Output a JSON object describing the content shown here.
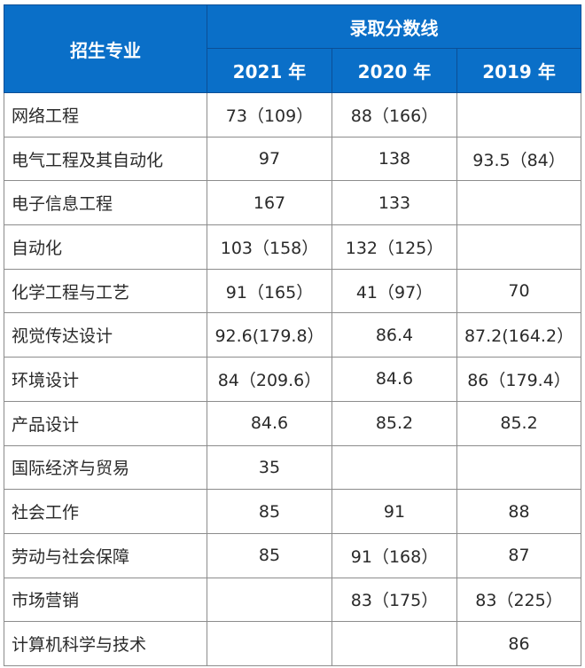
{
  "table": {
    "header": {
      "major_label": "招生专业",
      "group_label": "录取分数线",
      "years": [
        "2021 年",
        "2020 年",
        "2019 年"
      ]
    },
    "colors": {
      "header_bg": "#0a6fc8",
      "header_text": "#ffffff",
      "border": "#8c8c8c"
    },
    "rows": [
      {
        "major": "网络工程",
        "y2021": "73（109）",
        "y2020": "88（166）",
        "y2019": ""
      },
      {
        "major": "电气工程及其自动化",
        "y2021": "97",
        "y2020": "138",
        "y2019": "93.5（84）"
      },
      {
        "major": "电子信息工程",
        "y2021": "167",
        "y2020": "133",
        "y2019": ""
      },
      {
        "major": "自动化",
        "y2021": "103（158）",
        "y2020": "132（125）",
        "y2019": ""
      },
      {
        "major": "化学工程与工艺",
        "y2021": "91（165）",
        "y2020": "41（97）",
        "y2019": "70"
      },
      {
        "major": "视觉传达设计",
        "y2021": "92.6(179.8）",
        "y2020": "86.4",
        "y2019": "87.2(164.2）"
      },
      {
        "major": "环境设计",
        "y2021": "84（209.6）",
        "y2020": "84.6",
        "y2019": "86（179.4）"
      },
      {
        "major": "产品设计",
        "y2021": "84.6",
        "y2020": "85.2",
        "y2019": "85.2"
      },
      {
        "major": "国际经济与贸易",
        "y2021": "35",
        "y2020": "",
        "y2019": ""
      },
      {
        "major": "社会工作",
        "y2021": "85",
        "y2020": "91",
        "y2019": "88"
      },
      {
        "major": "劳动与社会保障",
        "y2021": "85",
        "y2020": "91（168）",
        "y2019": "87"
      },
      {
        "major": "市场营销",
        "y2021": "",
        "y2020": "83（175）",
        "y2019": "83（225）"
      },
      {
        "major": "计算机科学与技术",
        "y2021": "",
        "y2020": "",
        "y2019": "86"
      }
    ]
  }
}
